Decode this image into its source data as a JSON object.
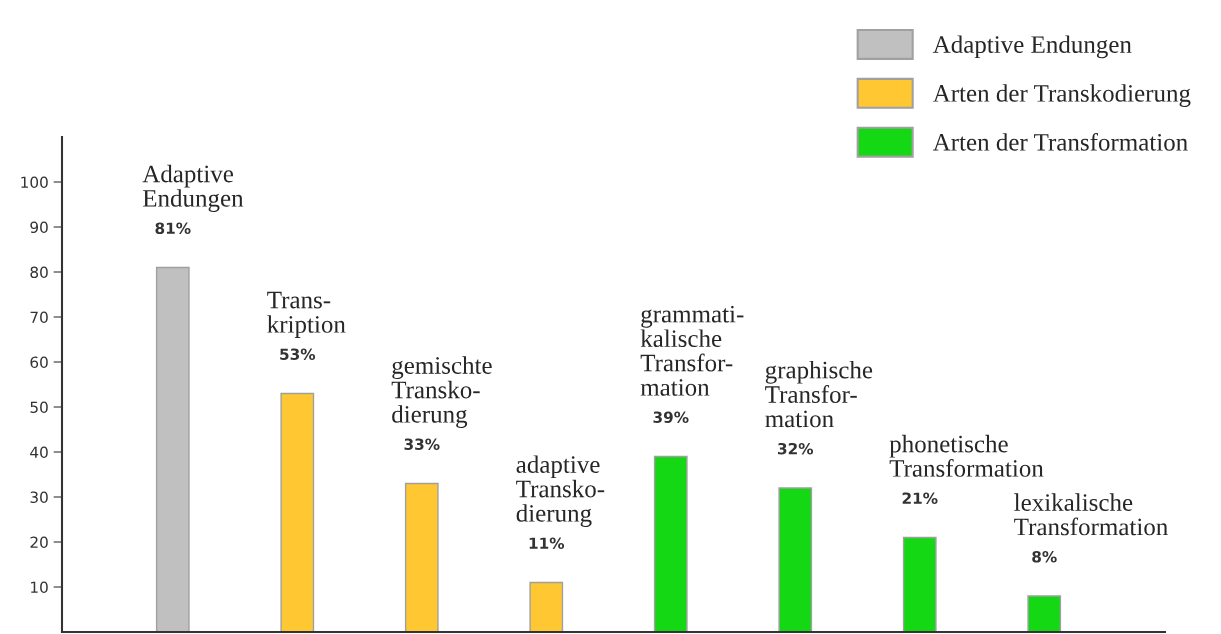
{
  "chart_data": {
    "type": "bar",
    "categories": [
      "Adaptive\nEndungen",
      "Trans-\nkription",
      "gemischte\nTransko-\ndierung",
      "adaptive\nTransko-\ndierung",
      "grammati-\nkalische\nTransfor-\nmation",
      "graphische\nTransfor-\nmation",
      "phonetische\nTransformation",
      "lexikalische\nTransformation"
    ],
    "series": [
      {
        "name": "Adaptive Endungen",
        "color": "#c0c0c0",
        "values": [
          81,
          null,
          null,
          null,
          null,
          null,
          null,
          null
        ],
        "value_labels": [
          "81%",
          null,
          null,
          null,
          null,
          null,
          null,
          null
        ]
      },
      {
        "name": "Arten der Transkodierung",
        "color": "#ffc832",
        "values": [
          null,
          53,
          33,
          11,
          null,
          null,
          null,
          null
        ],
        "value_labels": [
          null,
          "53%",
          "33%",
          "11%",
          null,
          null,
          null,
          null
        ]
      },
      {
        "name": "Arten der Transformation",
        "color": "#13d813",
        "values": [
          null,
          null,
          null,
          null,
          39,
          32,
          21,
          8
        ],
        "value_labels": [
          null,
          null,
          null,
          null,
          "39%",
          "32%",
          "21%",
          "8%"
        ]
      }
    ],
    "ylim": [
      0,
      110
    ],
    "yticks": [
      10,
      20,
      30,
      40,
      50,
      60,
      70,
      80,
      90,
      100
    ],
    "grid": false,
    "legend": "top right",
    "tick_labels": "y"
  }
}
